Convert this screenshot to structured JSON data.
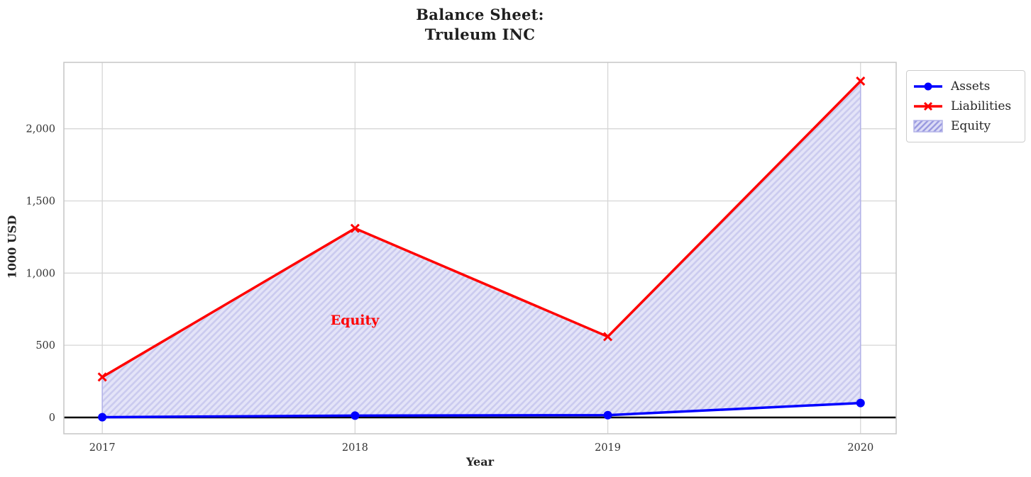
{
  "chart_data": {
    "type": "line",
    "title_line1": "Balance Sheet:",
    "title_line2": "Truleum INC",
    "xlabel": "Year",
    "ylabel": "1000 USD",
    "categories": [
      "2017",
      "2018",
      "2019",
      "2020"
    ],
    "series": [
      {
        "name": "Assets",
        "color": "#0000ff",
        "marker": "circle",
        "values": [
          2,
          13,
          16,
          100
        ]
      },
      {
        "name": "Liabilities",
        "color": "#ff0000",
        "marker": "x",
        "values": [
          280,
          1310,
          560,
          2330
        ]
      }
    ],
    "fill_between": {
      "name": "Equity",
      "between": [
        "Assets",
        "Liabilities"
      ],
      "fill_color": "#e4e4f8",
      "hatch_color": "#cbcbef",
      "edge_color": "#b3b3e8",
      "hatch": "//"
    },
    "annotation": {
      "text": "Equity",
      "color": "#ff0000",
      "near_category": "2018",
      "y_value": 665
    },
    "yticks": {
      "values": [
        0,
        500,
        1000,
        1500,
        2000
      ],
      "labels": [
        "0",
        "500",
        "1,000",
        "1,500",
        "2,000"
      ]
    },
    "ylim": [
      -113,
      2460
    ],
    "xlim_index": [
      -0.152,
      3.141
    ],
    "grid": true,
    "zero_line": true,
    "legend": {
      "position": "upper right outside",
      "items": [
        "Assets",
        "Liabilities",
        "Equity"
      ]
    },
    "colors": {
      "grid": "#d6d6d6",
      "frame": "#c6c6c6",
      "tick_label": "#333333",
      "zero_line": "#000000"
    }
  }
}
